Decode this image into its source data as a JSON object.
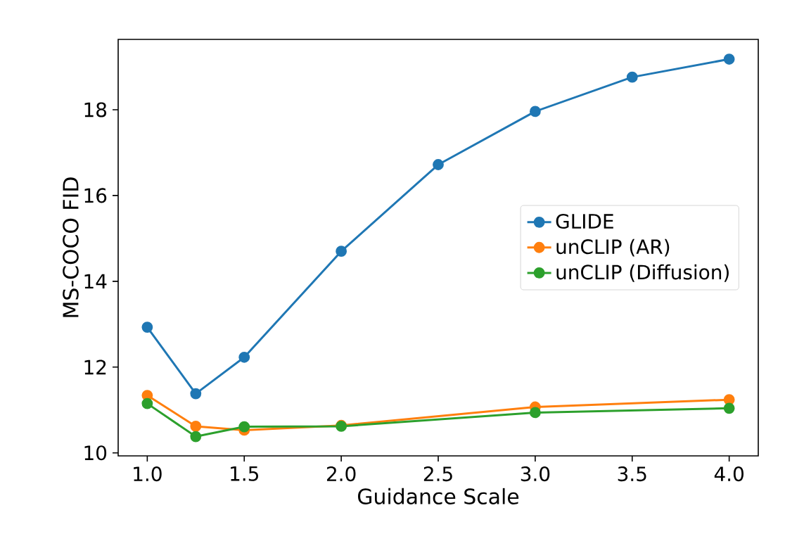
{
  "chart_data": {
    "type": "line",
    "xlabel": "Guidance Scale",
    "ylabel": "MS-COCO FID",
    "series": [
      {
        "name": "GLIDE",
        "color": "#1f77b4",
        "x": [
          1.0,
          1.25,
          1.5,
          2.0,
          2.5,
          3.0,
          3.5,
          4.0
        ],
        "values": [
          12.93,
          11.38,
          12.23,
          14.7,
          16.72,
          17.96,
          18.76,
          19.18
        ]
      },
      {
        "name": "unCLIP (AR)",
        "color": "#ff7f0e",
        "x": [
          1.0,
          1.25,
          1.5,
          2.0,
          3.0,
          4.0
        ],
        "values": [
          11.34,
          10.62,
          10.53,
          10.64,
          11.07,
          11.24
        ]
      },
      {
        "name": "unCLIP (Diffusion)",
        "color": "#2ca02c",
        "x": [
          1.0,
          1.25,
          1.5,
          2.0,
          3.0,
          4.0
        ],
        "values": [
          11.15,
          10.38,
          10.61,
          10.62,
          10.94,
          11.04
        ]
      }
    ],
    "xlim": [
      0.85,
      4.15
    ],
    "ylim": [
      9.93,
      19.64
    ],
    "xticks": [
      {
        "value": 1.0,
        "label": "1.0"
      },
      {
        "value": 1.5,
        "label": "1.5"
      },
      {
        "value": 2.0,
        "label": "2.0"
      },
      {
        "value": 2.5,
        "label": "2.5"
      },
      {
        "value": 3.0,
        "label": "3.0"
      },
      {
        "value": 3.5,
        "label": "3.5"
      },
      {
        "value": 4.0,
        "label": "4.0"
      }
    ],
    "yticks": [
      10,
      12,
      14,
      16,
      18
    ],
    "grid": false,
    "legend": "right",
    "marker": "circle",
    "line_style": "solid"
  }
}
